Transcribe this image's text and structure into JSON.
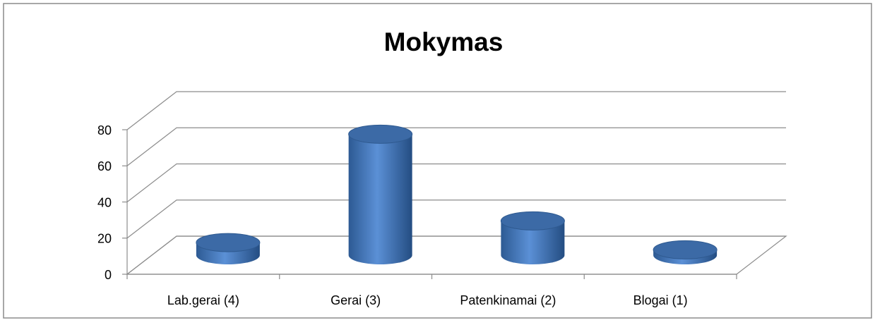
{
  "chart_data": {
    "type": "bar3d",
    "title": "Mokymas",
    "categories": [
      "Lab.gerai (4)",
      "Gerai (3)",
      "Patenkinamai (2)",
      "Blogai (1)"
    ],
    "values": [
      7,
      67,
      19,
      3
    ],
    "color": "#4f81bd",
    "ylim": [
      0,
      80
    ],
    "yticks": [
      0,
      20,
      40,
      60,
      80
    ],
    "grid": true
  }
}
